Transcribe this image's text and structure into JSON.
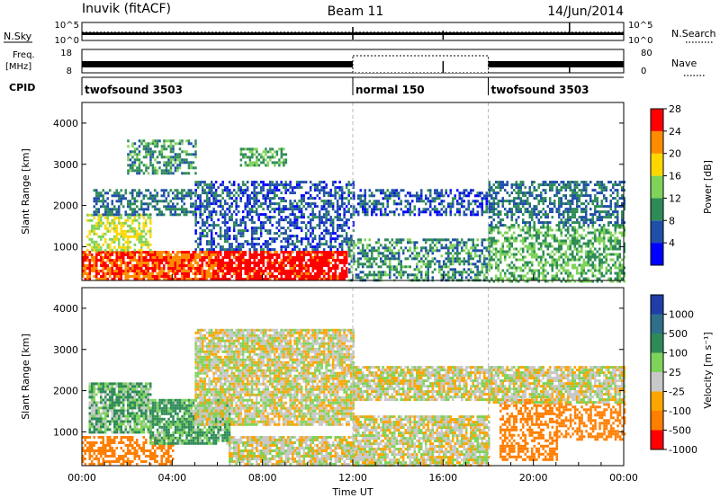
{
  "header": {
    "station": "Inuvik (fitACF)",
    "beam": "Beam 11",
    "date": "14/Jun/2014"
  },
  "strip_panels": {
    "nsky": {
      "left_label": "N.Sky",
      "right_label": "N.Search",
      "left_ticks": [
        "10^5",
        "10^0"
      ],
      "right_ticks": [
        "10^5",
        "10^0"
      ]
    },
    "freq": {
      "left_label": "Freq.",
      "left_unit": "[MHz]",
      "right_label": "Nave",
      "left_ticks": [
        "18",
        "8"
      ],
      "right_ticks": [
        "80",
        "0"
      ]
    },
    "cpid": {
      "label": "CPID",
      "segments": [
        {
          "name": "twofsound 3503",
          "start_hour": 0,
          "end_hour": 12
        },
        {
          "name": "normal 150",
          "start_hour": 12,
          "end_hour": 18
        },
        {
          "name": "twofsound 3503",
          "start_hour": 18,
          "end_hour": 24
        }
      ]
    }
  },
  "axes": {
    "y_label": "Slant Range [km]",
    "y_ticks": [
      "1000",
      "2000",
      "3000",
      "4000"
    ],
    "x_label": "Time UT",
    "x_ticks": [
      "00:00",
      "04:00",
      "08:00",
      "12:00",
      "16:00",
      "20:00",
      "00:00"
    ]
  },
  "colorbars": {
    "power": {
      "label": "Power [dB]",
      "ticks": [
        "4",
        "8",
        "12",
        "16",
        "20",
        "24",
        "28"
      ],
      "colors": [
        "#0000ff",
        "#1f4fa8",
        "#2e8b57",
        "#7fd35a",
        "#ffd700",
        "#ff8c00",
        "#ff0000"
      ]
    },
    "velocity": {
      "label": "Velocity [m s⁻¹]",
      "ticks": [
        "1000",
        "500",
        "100",
        "25",
        "-25",
        "-100",
        "-500",
        "-1000"
      ],
      "colors": [
        "#1f3ea8",
        "#2e6f8a",
        "#2e8b57",
        "#7fd35a",
        "#c8c8c8",
        "#ffa500",
        "#ff7f00",
        "#ff0000"
      ]
    }
  },
  "chart_data": [
    {
      "type": "heatmap",
      "name": "power",
      "x_unit": "hour UT",
      "y_unit": "km",
      "xlim": [
        0,
        24
      ],
      "ylim": [
        180,
        4500
      ],
      "clim": [
        0,
        30
      ],
      "regions": [
        {
          "x": [
            0.0,
            6.0
          ],
          "y": [
            180,
            900
          ],
          "value": 26
        },
        {
          "x": [
            6.0,
            11.7
          ],
          "y": [
            180,
            900
          ],
          "value": 29
        },
        {
          "x": [
            0.2,
            3.0
          ],
          "y": [
            900,
            1800
          ],
          "value": 18
        },
        {
          "x": [
            0.5,
            5.0
          ],
          "y": [
            1800,
            2400
          ],
          "value": 10
        },
        {
          "x": [
            5.0,
            12.0
          ],
          "y": [
            900,
            2600
          ],
          "value": 8
        },
        {
          "x": [
            7.0,
            9.0
          ],
          "y": [
            3000,
            3400
          ],
          "value": 14
        },
        {
          "x": [
            11.8,
            18.0
          ],
          "y": [
            180,
            1200
          ],
          "value": 12
        },
        {
          "x": [
            12.0,
            18.0
          ],
          "y": [
            1800,
            2400
          ],
          "value": 8
        },
        {
          "x": [
            18.0,
            24.0
          ],
          "y": [
            180,
            1500
          ],
          "value": 14
        },
        {
          "x": [
            18.0,
            24.0
          ],
          "y": [
            1500,
            2600
          ],
          "value": 10
        },
        {
          "x": [
            2.0,
            5.0
          ],
          "y": [
            2800,
            3600
          ],
          "value": 12
        }
      ]
    },
    {
      "type": "heatmap",
      "name": "velocity",
      "x_unit": "hour UT",
      "y_unit": "km",
      "xlim": [
        0,
        24
      ],
      "ylim": [
        180,
        4500
      ],
      "clim": [
        -1000,
        1000
      ],
      "regions": [
        {
          "x": [
            0.0,
            4.0
          ],
          "y": [
            180,
            900
          ],
          "value": -200
        },
        {
          "x": [
            3.0,
            6.5
          ],
          "y": [
            700,
            1800
          ],
          "value": 80
        },
        {
          "x": [
            6.5,
            12.0
          ],
          "y": [
            180,
            900
          ],
          "value": 0
        },
        {
          "x": [
            0.3,
            3.0
          ],
          "y": [
            1000,
            2200
          ],
          "value": 60
        },
        {
          "x": [
            5.0,
            12.0
          ],
          "y": [
            1200,
            3500
          ],
          "value": 0
        },
        {
          "x": [
            12.0,
            18.0
          ],
          "y": [
            180,
            1400
          ],
          "value": 0
        },
        {
          "x": [
            12.0,
            18.0
          ],
          "y": [
            1800,
            2600
          ],
          "value": 0
        },
        {
          "x": [
            18.5,
            21.0
          ],
          "y": [
            300,
            1800
          ],
          "value": -200
        },
        {
          "x": [
            21.0,
            24.0
          ],
          "y": [
            800,
            1700
          ],
          "value": -300
        },
        {
          "x": [
            18.0,
            24.0
          ],
          "y": [
            1700,
            2600
          ],
          "value": 0
        }
      ]
    }
  ]
}
